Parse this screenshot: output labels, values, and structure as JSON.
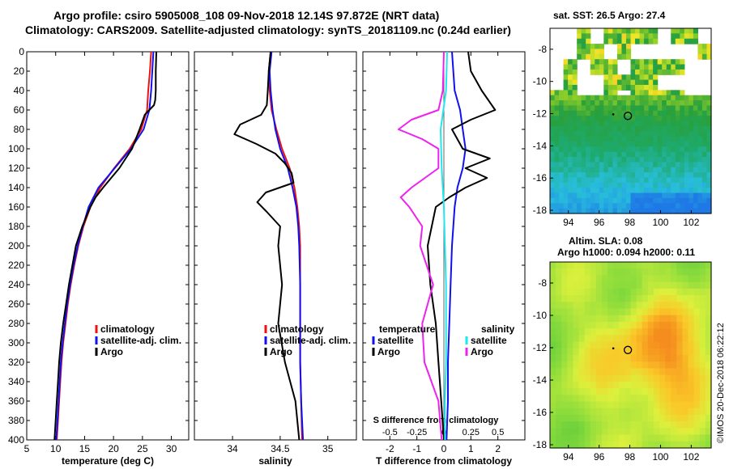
{
  "header": {
    "line1": "Argo profile: csiro 5905008_108 09-Nov-2018 12.14S 97.872E (NRT data)",
    "line2": "Climatology: CARS2009. Satellite-adjusted climatology: synTS_20181109.nc (0.24d earlier)"
  },
  "map_sst": {
    "title": "sat. SST: 26.5 Argo: 27.4"
  },
  "map_sla": {
    "title1": "Altim. SLA: 0.08",
    "title2": "Argo h1000: 0.094 h2000: 0.11"
  },
  "credit": "©IMOS 20-Dec-2018 06:22:12",
  "colors": {
    "climatology": "#ee1111",
    "satellite": "#1111ee",
    "argo": "#000000",
    "sat_salinity": "#22e6ee",
    "argo_salinity": "#ee22ee"
  },
  "chart_data": [
    {
      "type": "line",
      "name": "temperature",
      "xlabel": "temperature (deg C)",
      "ylabel": "depth",
      "xlim": [
        5,
        33
      ],
      "ylim": [
        400,
        0
      ],
      "xticks": [
        5,
        10,
        15,
        20,
        25,
        30
      ],
      "yticks": [
        0,
        20,
        40,
        60,
        80,
        100,
        120,
        140,
        160,
        180,
        200,
        220,
        240,
        260,
        280,
        300,
        320,
        340,
        360,
        380,
        400
      ],
      "legend": [
        "climatology",
        "satellite-adj. clim.",
        "Argo"
      ],
      "series": [
        {
          "name": "climatology",
          "depth": [
            0,
            20,
            40,
            60,
            80,
            100,
            120,
            140,
            160,
            180,
            200,
            220,
            240,
            260,
            280,
            300,
            320,
            340,
            360,
            380,
            400
          ],
          "values": [
            26.5,
            26.3,
            26.0,
            25.8,
            24.8,
            22.8,
            20.1,
            17.7,
            16.0,
            14.8,
            13.9,
            13.2,
            12.6,
            12.1,
            11.7,
            11.3,
            11.0,
            10.8,
            10.6,
            10.4,
            10.2
          ]
        },
        {
          "name": "satellite-adj. clim.",
          "depth": [
            0,
            20,
            40,
            60,
            80,
            100,
            120,
            140,
            160,
            180,
            200,
            220,
            240,
            260,
            280,
            300,
            320,
            340,
            360,
            380,
            400
          ],
          "values": [
            26.9,
            26.7,
            26.5,
            26.2,
            25.2,
            23.0,
            20.2,
            17.4,
            15.7,
            14.7,
            13.8,
            13.1,
            12.5,
            12.0,
            11.6,
            11.2,
            10.9,
            10.7,
            10.5,
            10.3,
            10.1
          ]
        },
        {
          "name": "Argo",
          "depth": [
            0,
            20,
            40,
            50,
            55,
            60,
            65,
            80,
            100,
            120,
            140,
            150,
            160,
            170,
            180,
            200,
            220,
            240,
            260,
            280,
            300,
            320,
            340,
            360,
            380,
            400
          ],
          "values": [
            27.4,
            27.3,
            27.3,
            27.2,
            27.0,
            26.2,
            25.4,
            24.5,
            23.2,
            21.0,
            18.2,
            16.9,
            16.0,
            15.3,
            14.6,
            13.5,
            12.9,
            12.3,
            11.8,
            11.3,
            10.9,
            10.6,
            10.4,
            10.2,
            10.0,
            9.8
          ]
        }
      ]
    },
    {
      "type": "line",
      "name": "salinity",
      "xlabel": "salinity",
      "xlim": [
        33.6,
        35.3
      ],
      "ylim": [
        400,
        0
      ],
      "xticks": [
        34,
        34.5,
        35
      ],
      "legend": [
        "climatology",
        "satellite-adj. clim.",
        "Argo"
      ],
      "series": [
        {
          "name": "climatology",
          "depth": [
            0,
            20,
            40,
            60,
            80,
            100,
            120,
            140,
            160,
            180,
            200,
            240,
            280,
            320,
            360,
            400
          ],
          "values": [
            34.4,
            34.38,
            34.39,
            34.41,
            34.46,
            34.52,
            34.6,
            34.65,
            34.68,
            34.7,
            34.71,
            34.71,
            34.71,
            34.71,
            34.72,
            34.73
          ]
        },
        {
          "name": "satellite-adj. clim.",
          "depth": [
            0,
            20,
            40,
            60,
            80,
            100,
            120,
            140,
            160,
            180,
            200,
            240,
            280,
            320,
            360,
            400
          ],
          "values": [
            34.41,
            34.39,
            34.4,
            34.42,
            34.45,
            34.5,
            34.58,
            34.63,
            34.67,
            34.69,
            34.7,
            34.71,
            34.71,
            34.71,
            34.72,
            34.74
          ]
        },
        {
          "name": "Argo",
          "depth": [
            0,
            20,
            40,
            55,
            65,
            75,
            85,
            95,
            105,
            115,
            125,
            135,
            145,
            155,
            165,
            180,
            200,
            240,
            280,
            320,
            360,
            400
          ],
          "values": [
            34.4,
            34.38,
            34.37,
            34.36,
            34.3,
            34.08,
            34.02,
            34.25,
            34.45,
            34.55,
            34.62,
            34.64,
            34.35,
            34.26,
            34.36,
            34.5,
            34.48,
            34.52,
            34.48,
            34.55,
            34.66,
            34.7
          ]
        }
      ]
    },
    {
      "type": "line",
      "name": "difference",
      "xlabel": "T difference from climatology",
      "top_xlabel": "S difference from climatology",
      "xlim": [
        -3,
        3
      ],
      "ylim": [
        400,
        0
      ],
      "xticks": [
        -2,
        -1,
        0,
        1,
        2
      ],
      "top_xticks": [
        "-0.5",
        "-0.25",
        "0",
        "0.25",
        "0.5"
      ],
      "legend_temperature_title": "temperature",
      "legend_salinity_title": "salinity",
      "legend": [
        "satellite",
        "Argo",
        "satellite",
        "Argo"
      ],
      "series": [
        {
          "name": "temperature satellite",
          "depth": [
            0,
            40,
            60,
            80,
            100,
            120,
            140,
            160,
            200,
            240,
            280,
            320,
            360,
            400
          ],
          "values": [
            0.3,
            0.4,
            0.6,
            0.7,
            0.8,
            0.7,
            0.5,
            0.4,
            0.3,
            0.25,
            0.2,
            0.15,
            0.15,
            0.1
          ]
        },
        {
          "name": "temperature Argo",
          "depth": [
            0,
            20,
            40,
            60,
            70,
            80,
            100,
            110,
            120,
            130,
            140,
            150,
            160,
            200,
            240,
            280,
            320,
            360,
            400
          ],
          "values": [
            0.9,
            1.0,
            1.4,
            1.9,
            1.0,
            0.3,
            0.7,
            1.7,
            0.8,
            1.6,
            0.8,
            0.2,
            -0.3,
            -0.6,
            -0.5,
            -0.3,
            -0.2,
            -0.1,
            0.0
          ]
        },
        {
          "name": "salinity satellite",
          "depth": [
            0,
            40,
            80,
            120,
            160,
            200,
            240,
            280,
            320,
            360,
            400
          ],
          "values": [
            0.03,
            0.02,
            -0.03,
            -0.02,
            0.0,
            0.01,
            0.02,
            0.02,
            0.02,
            0.01,
            0.01
          ]
        },
        {
          "name": "salinity Argo",
          "depth": [
            0,
            40,
            60,
            70,
            80,
            90,
            100,
            120,
            140,
            150,
            160,
            180,
            200,
            240,
            280,
            320,
            360,
            400
          ],
          "values": [
            0.0,
            -0.01,
            -0.05,
            -0.3,
            -0.42,
            -0.2,
            -0.05,
            -0.05,
            -0.3,
            -0.4,
            -0.32,
            -0.2,
            -0.22,
            -0.1,
            -0.2,
            -0.18,
            -0.05,
            -0.02
          ]
        }
      ]
    },
    {
      "type": "heatmap",
      "name": "sst-map",
      "title": "sat. SST: 26.5 Argo: 27.4",
      "xlim": [
        92.8,
        103.3
      ],
      "ylim": [
        -18.2,
        -6.7
      ],
      "xticks": [
        94,
        96,
        98,
        100,
        102
      ],
      "yticks": [
        -8,
        -10,
        -12,
        -14,
        -16,
        -18
      ],
      "marker": {
        "lon": 97.872,
        "lat": -12.14
      }
    },
    {
      "type": "heatmap",
      "name": "sla-map",
      "title": "Altim. SLA: 0.08",
      "xlim": [
        92.8,
        103.3
      ],
      "ylim": [
        -18.2,
        -6.7
      ],
      "xticks": [
        94,
        96,
        98,
        100,
        102
      ],
      "yticks": [
        -8,
        -10,
        -12,
        -14,
        -16,
        -18
      ],
      "marker": {
        "lon": 97.872,
        "lat": -12.14
      }
    }
  ]
}
